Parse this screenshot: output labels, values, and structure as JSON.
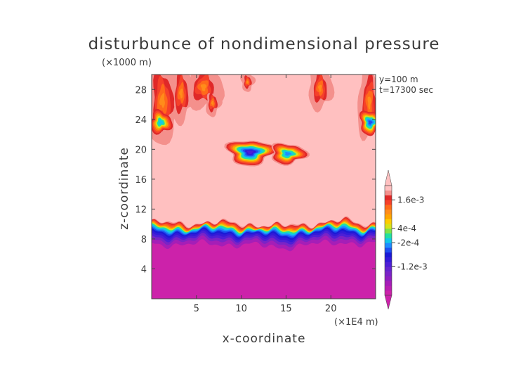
{
  "chart_data": {
    "type": "heatmap",
    "title": "disturbunce of nondimensional pressure",
    "xlabel": "x-coordinate",
    "ylabel": "z-coordinate",
    "x_unit": "(×1E4 m)",
    "y_unit": "(×1000 m)",
    "annotations": [
      "y=100 m",
      "t=17300 sec"
    ],
    "xlim": [
      0,
      25
    ],
    "ylim": [
      0,
      30
    ],
    "x_ticks": [
      5,
      10,
      15,
      20
    ],
    "y_ticks": [
      4,
      8,
      12,
      16,
      20,
      24,
      28
    ],
    "colorbar": {
      "labels": [
        {
          "text": "1.6e-3",
          "value": 0.0016
        },
        {
          "text": "4e-4",
          "value": 0.0004
        },
        {
          "text": "-2e-4",
          "value": -0.0002
        },
        {
          "text": "-1.2e-3",
          "value": -0.0012
        }
      ],
      "levels": [
        -0.0024,
        -0.0022,
        -0.002,
        -0.0018,
        -0.0016,
        -0.0014,
        -0.0012,
        -0.001,
        -0.0008,
        -0.0006,
        -0.0004,
        -0.0002,
        0,
        0.0002,
        0.0004,
        0.0006,
        0.0008,
        0.001,
        0.0012,
        0.0014,
        0.0016,
        0.0018,
        0.002
      ],
      "colors": [
        "#cc22aa",
        "#b81fb0",
        "#a51eb7",
        "#8f1fbe",
        "#7a24c6",
        "#6524ce",
        "#4d1fd6",
        "#331ad8",
        "#1a1ad6",
        "#1e4ef0",
        "#1e8cff",
        "#12c8e8",
        "#22e0a0",
        "#7fe34a",
        "#d7e21a",
        "#ffcc00",
        "#ffa500",
        "#ff8c1a",
        "#ff6a1a",
        "#f5402a",
        "#e02828",
        "#f4908c",
        "#ffc0c0"
      ],
      "extend": "both"
    },
    "regions": [
      {
        "name": "lower layer",
        "z_range": [
          0,
          8
        ],
        "level": "< -2.4e-3"
      },
      {
        "name": "transition band",
        "z_range": [
          8,
          10
        ],
        "level": "-2.4e-3 to 2e-3"
      },
      {
        "name": "upper field",
        "z_range": [
          10,
          30
        ],
        "level": "> 2e-3"
      },
      {
        "name": "blob",
        "center": [
          11,
          19.5
        ],
        "level": "min ≈ -1.2e-3"
      },
      {
        "name": "blob",
        "center": [
          15,
          19.5
        ],
        "level": "min ≈ -2e-4"
      },
      {
        "name": "blob",
        "center": [
          1,
          23.5
        ],
        "level": "min ≈ -2e-4"
      },
      {
        "name": "blob",
        "center": [
          24.5,
          23.5
        ],
        "level": "min ≈ -6e-4"
      }
    ]
  }
}
